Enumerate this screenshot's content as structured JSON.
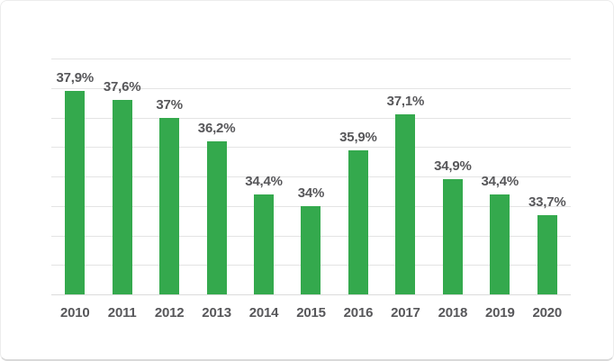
{
  "colors": {
    "bar": "#34a94d",
    "grid": "#e4e4e4",
    "axis_line": "#dcdcdc",
    "text": "#57575a",
    "card_border": "#ececec",
    "card_border_bottom": "#d9d9d9",
    "background": "#ffffff"
  },
  "chart_data": {
    "type": "bar",
    "categories": [
      "2010",
      "2011",
      "2012",
      "2013",
      "2014",
      "2015",
      "2016",
      "2017",
      "2018",
      "2019",
      "2020"
    ],
    "values": [
      37.9,
      37.6,
      37.0,
      36.2,
      34.4,
      34.0,
      35.9,
      37.1,
      34.9,
      34.4,
      33.7
    ],
    "value_labels": [
      "37,9%",
      "37,6%",
      "37%",
      "36,2%",
      "34,4%",
      "34%",
      "35,9%",
      "37,1%",
      "34,9%",
      "34,4%",
      "33,7%"
    ],
    "title": "",
    "xlabel": "",
    "ylabel": "",
    "ylim": [
      31,
      39
    ],
    "gridline_step": 1,
    "grid": "horizontal-only",
    "y_tick_labels_visible": false,
    "legend": "none",
    "bar_color": "#34a94d",
    "decimal_separator": ","
  }
}
